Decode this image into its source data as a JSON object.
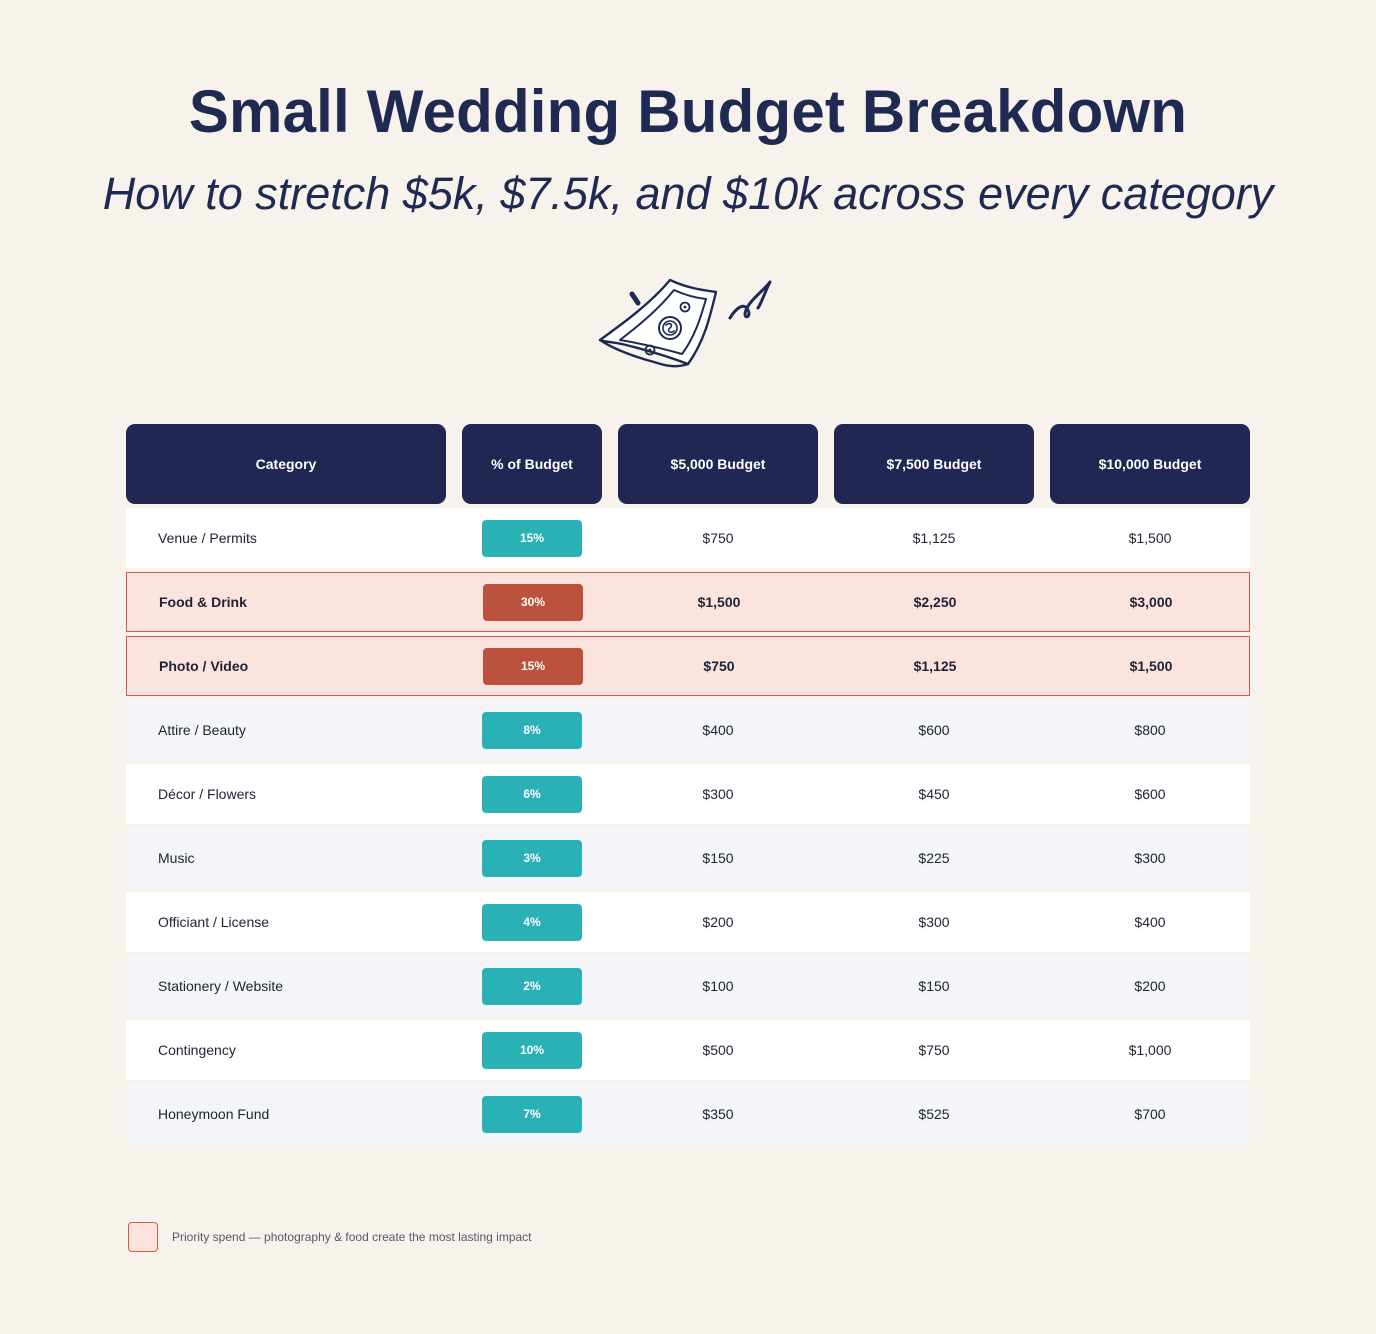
{
  "title": "Small Wedding Budget Breakdown",
  "subtitle": "How to stretch $5k, $7.5k, and $10k across every category",
  "icons": {
    "illustration": "dollar-bill-icon",
    "swirl": "swirl-icon"
  },
  "colors": {
    "background": "#f7f2ec",
    "navy": "#1f2752",
    "teal": "#2ab1b6",
    "priority_red": "#bb523d",
    "priority_fill": "#fbe3de",
    "priority_border": "#d45a45"
  },
  "table": {
    "headers": [
      "Category",
      "% of Budget",
      "$5,000 Budget",
      "$7,500 Budget",
      "$10,000 Budget"
    ],
    "rows": [
      {
        "category": "Venue / Permits",
        "percent": "15%",
        "b5000": "$750",
        "b7500": "$1,125",
        "b10000": "$1,500",
        "priority": false
      },
      {
        "category": "Food & Drink",
        "percent": "30%",
        "b5000": "$1,500",
        "b7500": "$2,250",
        "b10000": "$3,000",
        "priority": true
      },
      {
        "category": "Photo / Video",
        "percent": "15%",
        "b5000": "$750",
        "b7500": "$1,125",
        "b10000": "$1,500",
        "priority": true
      },
      {
        "category": "Attire / Beauty",
        "percent": "8%",
        "b5000": "$400",
        "b7500": "$600",
        "b10000": "$800",
        "priority": false
      },
      {
        "category": "Décor / Flowers",
        "percent": "6%",
        "b5000": "$300",
        "b7500": "$450",
        "b10000": "$600",
        "priority": false
      },
      {
        "category": "Music",
        "percent": "3%",
        "b5000": "$150",
        "b7500": "$225",
        "b10000": "$300",
        "priority": false
      },
      {
        "category": "Officiant / License",
        "percent": "4%",
        "b5000": "$200",
        "b7500": "$300",
        "b10000": "$400",
        "priority": false
      },
      {
        "category": "Stationery / Website",
        "percent": "2%",
        "b5000": "$100",
        "b7500": "$150",
        "b10000": "$200",
        "priority": false
      },
      {
        "category": "Contingency",
        "percent": "10%",
        "b5000": "$500",
        "b7500": "$750",
        "b10000": "$1,000",
        "priority": false
      },
      {
        "category": "Honeymoon Fund",
        "percent": "7%",
        "b5000": "$350",
        "b7500": "$525",
        "b10000": "$700",
        "priority": false
      }
    ]
  },
  "legend": {
    "text": "Priority spend — photography & food create the most lasting impact"
  }
}
